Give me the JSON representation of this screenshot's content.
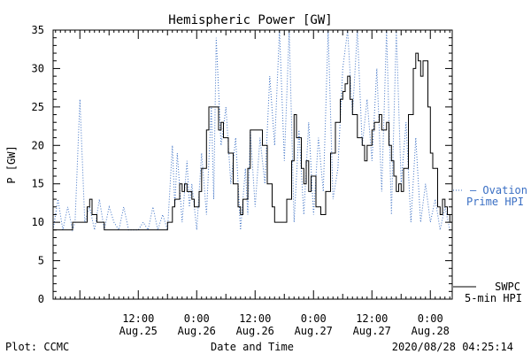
{
  "footer": {
    "left": "Plot: CCMC",
    "timestamp": "2020/08/28 04:25:14"
  },
  "chart_data": {
    "type": "line",
    "title": "Hemispheric Power [GW]",
    "xlabel": "Date and Time",
    "ylabel": "P [GW]",
    "ylim": [
      0,
      35
    ],
    "y_ticks": [
      0,
      5,
      10,
      15,
      20,
      25,
      30,
      35
    ],
    "xlim": [
      "2020-08-24 18:30",
      "2020-08-28 04:30"
    ],
    "x_ticks": [
      {
        "time": "2020-08-25 12:00",
        "line1": "12:00",
        "line2": "Aug.25"
      },
      {
        "time": "2020-08-26 00:00",
        "line1": "0:00",
        "line2": "Aug.26"
      },
      {
        "time": "2020-08-26 12:00",
        "line1": "12:00",
        "line2": "Aug.26"
      },
      {
        "time": "2020-08-27 00:00",
        "line1": "0:00",
        "line2": "Aug.27"
      },
      {
        "time": "2020-08-27 12:00",
        "line1": "12:00",
        "line2": "Aug.27"
      },
      {
        "time": "2020-08-28 00:00",
        "line1": "0:00",
        "line2": "Aug.28"
      }
    ],
    "grid": false,
    "legend_placement": "right",
    "series": [
      {
        "name": "Ovation Prime HPI",
        "legend_line1": "— Ovation",
        "legend_line2": "Prime HPI",
        "color": "#3a6fc4",
        "style": "dotted",
        "points": [
          [
            "2020-08-24 18:30",
            9
          ],
          [
            "2020-08-24 19:30",
            13
          ],
          [
            "2020-08-24 20:30",
            9
          ],
          [
            "2020-08-24 21:30",
            12
          ],
          [
            "2020-08-24 22:30",
            9
          ],
          [
            "2020-08-24 23:00",
            10
          ],
          [
            "2020-08-25 00:00",
            26
          ],
          [
            "2020-08-25 01:00",
            10
          ],
          [
            "2020-08-25 02:00",
            12
          ],
          [
            "2020-08-25 03:00",
            9
          ],
          [
            "2020-08-25 04:00",
            13
          ],
          [
            "2020-08-25 05:00",
            9
          ],
          [
            "2020-08-25 06:00",
            12
          ],
          [
            "2020-08-25 07:00",
            10
          ],
          [
            "2020-08-25 08:00",
            9
          ],
          [
            "2020-08-25 09:00",
            12
          ],
          [
            "2020-08-25 10:00",
            9
          ],
          [
            "2020-08-25 12:00",
            9
          ],
          [
            "2020-08-25 13:00",
            10
          ],
          [
            "2020-08-25 14:00",
            9
          ],
          [
            "2020-08-25 15:00",
            12
          ],
          [
            "2020-08-25 16:00",
            9
          ],
          [
            "2020-08-25 17:00",
            11
          ],
          [
            "2020-08-25 18:00",
            9
          ],
          [
            "2020-08-25 19:00",
            20
          ],
          [
            "2020-08-25 19:30",
            12
          ],
          [
            "2020-08-25 20:00",
            19
          ],
          [
            "2020-08-25 21:00",
            10
          ],
          [
            "2020-08-25 22:00",
            18
          ],
          [
            "2020-08-25 22:30",
            12
          ],
          [
            "2020-08-25 23:00",
            15
          ],
          [
            "2020-08-26 00:00",
            9
          ],
          [
            "2020-08-26 01:00",
            19
          ],
          [
            "2020-08-26 02:00",
            11
          ],
          [
            "2020-08-26 03:00",
            25
          ],
          [
            "2020-08-26 03:30",
            13
          ],
          [
            "2020-08-26 04:00",
            34
          ],
          [
            "2020-08-26 05:00",
            20
          ],
          [
            "2020-08-26 06:00",
            25
          ],
          [
            "2020-08-26 07:00",
            15
          ],
          [
            "2020-08-26 08:00",
            21
          ],
          [
            "2020-08-26 09:00",
            9
          ],
          [
            "2020-08-26 10:00",
            17
          ],
          [
            "2020-08-26 10:30",
            11
          ],
          [
            "2020-08-26 11:00",
            22
          ],
          [
            "2020-08-26 12:00",
            12
          ],
          [
            "2020-08-26 13:00",
            21
          ],
          [
            "2020-08-26 14:00",
            15
          ],
          [
            "2020-08-26 15:00",
            29
          ],
          [
            "2020-08-26 16:00",
            20
          ],
          [
            "2020-08-26 17:00",
            35
          ],
          [
            "2020-08-26 18:00",
            18
          ],
          [
            "2020-08-26 19:00",
            35
          ],
          [
            "2020-08-26 20:00",
            10
          ],
          [
            "2020-08-26 21:00",
            22
          ],
          [
            "2020-08-26 22:00",
            11
          ],
          [
            "2020-08-26 23:00",
            23
          ],
          [
            "2020-08-27 00:00",
            11
          ],
          [
            "2020-08-27 01:00",
            21
          ],
          [
            "2020-08-27 02:00",
            14
          ],
          [
            "2020-08-27 03:00",
            35
          ],
          [
            "2020-08-27 04:00",
            13
          ],
          [
            "2020-08-27 05:00",
            17
          ],
          [
            "2020-08-27 06:00",
            30
          ],
          [
            "2020-08-27 07:00",
            35
          ],
          [
            "2020-08-27 08:00",
            24
          ],
          [
            "2020-08-27 09:00",
            35
          ],
          [
            "2020-08-27 10:00",
            20
          ],
          [
            "2020-08-27 11:00",
            26
          ],
          [
            "2020-08-27 12:00",
            18
          ],
          [
            "2020-08-27 13:00",
            30
          ],
          [
            "2020-08-27 14:00",
            14
          ],
          [
            "2020-08-27 15:00",
            35
          ],
          [
            "2020-08-27 16:00",
            11
          ],
          [
            "2020-08-27 17:00",
            35
          ],
          [
            "2020-08-27 18:00",
            15
          ],
          [
            "2020-08-27 19:00",
            23
          ],
          [
            "2020-08-27 20:00",
            10
          ],
          [
            "2020-08-27 21:00",
            21
          ],
          [
            "2020-08-27 22:00",
            10
          ],
          [
            "2020-08-27 23:00",
            15
          ],
          [
            "2020-08-28 00:00",
            10
          ],
          [
            "2020-08-28 01:00",
            13
          ],
          [
            "2020-08-28 02:00",
            9
          ],
          [
            "2020-08-28 03:00",
            12
          ],
          [
            "2020-08-28 04:00",
            9
          ]
        ]
      },
      {
        "name": "SWPC 5-min HPI",
        "legend_line1": "SWPC",
        "legend_line2": "5-min HPI",
        "color": "#000000",
        "style": "solid-step",
        "points": [
          [
            "2020-08-24 18:30",
            9
          ],
          [
            "2020-08-24 22:00",
            9
          ],
          [
            "2020-08-24 22:30",
            10
          ],
          [
            "2020-08-25 00:00",
            10
          ],
          [
            "2020-08-25 01:00",
            10
          ],
          [
            "2020-08-25 01:30",
            12
          ],
          [
            "2020-08-25 02:00",
            13
          ],
          [
            "2020-08-25 02:30",
            11
          ],
          [
            "2020-08-25 03:30",
            10
          ],
          [
            "2020-08-25 04:30",
            10
          ],
          [
            "2020-08-25 05:00",
            9
          ],
          [
            "2020-08-25 13:00",
            9
          ],
          [
            "2020-08-25 14:00",
            9
          ],
          [
            "2020-08-25 15:00",
            9
          ],
          [
            "2020-08-25 17:00",
            9
          ],
          [
            "2020-08-25 18:00",
            10
          ],
          [
            "2020-08-25 19:00",
            12
          ],
          [
            "2020-08-25 19:30",
            13
          ],
          [
            "2020-08-25 20:30",
            15
          ],
          [
            "2020-08-25 21:00",
            14
          ],
          [
            "2020-08-25 21:30",
            15
          ],
          [
            "2020-08-25 22:00",
            14
          ],
          [
            "2020-08-25 23:00",
            13
          ],
          [
            "2020-08-25 23:30",
            12
          ],
          [
            "2020-08-26 00:00",
            12
          ],
          [
            "2020-08-26 00:30",
            14
          ],
          [
            "2020-08-26 01:00",
            17
          ],
          [
            "2020-08-26 02:00",
            22
          ],
          [
            "2020-08-26 02:30",
            25
          ],
          [
            "2020-08-26 04:00",
            25
          ],
          [
            "2020-08-26 04:30",
            22
          ],
          [
            "2020-08-26 05:00",
            23
          ],
          [
            "2020-08-26 05:30",
            21
          ],
          [
            "2020-08-26 06:30",
            19
          ],
          [
            "2020-08-26 07:30",
            15
          ],
          [
            "2020-08-26 08:30",
            12
          ],
          [
            "2020-08-26 09:00",
            11
          ],
          [
            "2020-08-26 09:30",
            13
          ],
          [
            "2020-08-26 10:30",
            17
          ],
          [
            "2020-08-26 11:00",
            22
          ],
          [
            "2020-08-26 12:30",
            22
          ],
          [
            "2020-08-26 13:30",
            20
          ],
          [
            "2020-08-26 14:30",
            15
          ],
          [
            "2020-08-26 15:30",
            12
          ],
          [
            "2020-08-26 16:00",
            10
          ],
          [
            "2020-08-26 17:30",
            10
          ],
          [
            "2020-08-26 18:30",
            13
          ],
          [
            "2020-08-26 19:30",
            18
          ],
          [
            "2020-08-26 20:00",
            24
          ],
          [
            "2020-08-26 20:30",
            21
          ],
          [
            "2020-08-26 21:30",
            17
          ],
          [
            "2020-08-26 22:00",
            15
          ],
          [
            "2020-08-26 22:30",
            18
          ],
          [
            "2020-08-26 23:00",
            14
          ],
          [
            "2020-08-26 23:30",
            16
          ],
          [
            "2020-08-27 00:30",
            12
          ],
          [
            "2020-08-27 01:30",
            11
          ],
          [
            "2020-08-27 02:30",
            14
          ],
          [
            "2020-08-27 03:30",
            19
          ],
          [
            "2020-08-27 04:30",
            23
          ],
          [
            "2020-08-27 05:30",
            26
          ],
          [
            "2020-08-27 06:00",
            27
          ],
          [
            "2020-08-27 06:30",
            28
          ],
          [
            "2020-08-27 07:00",
            29
          ],
          [
            "2020-08-27 07:30",
            26
          ],
          [
            "2020-08-27 08:00",
            24
          ],
          [
            "2020-08-27 09:00",
            21
          ],
          [
            "2020-08-27 10:00",
            20
          ],
          [
            "2020-08-27 10:30",
            18
          ],
          [
            "2020-08-27 11:00",
            20
          ],
          [
            "2020-08-27 12:00",
            22
          ],
          [
            "2020-08-27 12:30",
            23
          ],
          [
            "2020-08-27 13:30",
            24
          ],
          [
            "2020-08-27 14:00",
            22
          ],
          [
            "2020-08-27 15:00",
            23
          ],
          [
            "2020-08-27 15:30",
            20
          ],
          [
            "2020-08-27 16:00",
            18
          ],
          [
            "2020-08-27 16:30",
            16
          ],
          [
            "2020-08-27 17:00",
            14
          ],
          [
            "2020-08-27 17:30",
            15
          ],
          [
            "2020-08-27 18:00",
            14
          ],
          [
            "2020-08-27 18:30",
            17
          ],
          [
            "2020-08-27 19:30",
            24
          ],
          [
            "2020-08-27 20:30",
            30
          ],
          [
            "2020-08-27 21:00",
            32
          ],
          [
            "2020-08-27 21:30",
            31
          ],
          [
            "2020-08-27 22:00",
            29
          ],
          [
            "2020-08-27 22:30",
            31
          ],
          [
            "2020-08-27 23:30",
            25
          ],
          [
            "2020-08-28 00:00",
            19
          ],
          [
            "2020-08-28 00:30",
            17
          ],
          [
            "2020-08-28 01:30",
            12
          ],
          [
            "2020-08-28 02:00",
            11
          ],
          [
            "2020-08-28 02:30",
            13
          ],
          [
            "2020-08-28 03:00",
            12
          ],
          [
            "2020-08-28 03:30",
            11
          ],
          [
            "2020-08-28 04:00",
            10
          ],
          [
            "2020-08-28 04:30",
            10
          ]
        ]
      }
    ]
  }
}
